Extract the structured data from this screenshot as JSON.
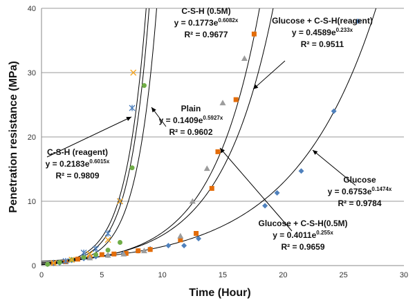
{
  "chart_data": {
    "type": "scatter",
    "xlabel": "Time (Hour)",
    "ylabel": "Penetration resistance (MPa)",
    "xlim": [
      0,
      30
    ],
    "ylim": [
      0,
      40
    ],
    "xticks": [
      "0",
      "5",
      "10",
      "15",
      "20",
      "25",
      "30"
    ],
    "yticks": [
      "0",
      "10",
      "20",
      "30",
      "40"
    ],
    "grid": "horizontal",
    "series": [
      {
        "key": "glucose",
        "marker": "diamond",
        "color": "#4f81bd",
        "fit": {
          "a": 0.6753,
          "b": 0.1474
        },
        "points": [
          [
            0.5,
            0.2
          ],
          [
            1.5,
            0.4
          ],
          [
            2.5,
            0.8
          ],
          [
            3.5,
            1.1
          ],
          [
            4.5,
            1.4
          ],
          [
            5.5,
            1.6
          ],
          [
            6.8,
            1.9
          ],
          [
            8.0,
            2.3
          ],
          [
            9.0,
            2.6
          ],
          [
            10.5,
            3.1
          ],
          [
            11.8,
            3.1
          ],
          [
            13.0,
            4.2
          ],
          [
            18.5,
            9.3
          ],
          [
            19.5,
            11.3
          ],
          [
            21.5,
            14.7
          ],
          [
            24.2,
            24.0
          ],
          [
            26.2,
            38.0
          ]
        ],
        "label": {
          "name": "Glucose",
          "equation_base": "y = 0.6753e",
          "equation_exp": "0.1474x",
          "r2": "R² = 0.9784"
        }
      },
      {
        "key": "glucose-csh-05m",
        "marker": "square",
        "color": "#e36c09",
        "fit": {
          "a": 0.4011,
          "b": 0.255
        },
        "points": [
          [
            1.0,
            0.4
          ],
          [
            2.0,
            0.6
          ],
          [
            3.0,
            1.0
          ],
          [
            4.0,
            1.3
          ],
          [
            5.0,
            1.7
          ],
          [
            6.0,
            1.8
          ],
          [
            7.0,
            1.9
          ],
          [
            8.0,
            2.3
          ],
          [
            9.0,
            2.5
          ],
          [
            11.5,
            4.0
          ],
          [
            12.8,
            5.0
          ],
          [
            14.1,
            12.0
          ],
          [
            14.6,
            17.7
          ],
          [
            16.1,
            25.8
          ],
          [
            17.6,
            36.0
          ]
        ],
        "label": {
          "name": "Glucose + C-S-H(0.5M)",
          "equation_base": "y = 0.4011e",
          "equation_exp": "0.255x",
          "r2": "R² = 0.9659"
        }
      },
      {
        "key": "glucose-csh-reagent",
        "marker": "triangle",
        "color": "#9c9c9c",
        "fit": {
          "a": 0.4589,
          "b": 0.233
        },
        "points": [
          [
            2.5,
            0.9
          ],
          [
            4.0,
            1.2
          ],
          [
            5.5,
            1.6
          ],
          [
            6.8,
            1.8
          ],
          [
            8.5,
            2.3
          ],
          [
            11.5,
            4.6
          ],
          [
            12.5,
            10.0
          ],
          [
            13.7,
            15.1
          ],
          [
            15.0,
            25.3
          ],
          [
            16.8,
            32.2
          ]
        ],
        "label": {
          "name": "Glucose + C-S-H(reagent)",
          "equation_base": "y = 0.4589e",
          "equation_exp": "0.233x",
          "r2": "R² = 0.9511"
        }
      },
      {
        "key": "plain",
        "marker": "circle",
        "color": "#70ad47",
        "fit": {
          "a": 0.1409,
          "b": 0.5927
        },
        "points": [
          [
            0.5,
            0.2
          ],
          [
            1.5,
            0.5
          ],
          [
            2.5,
            0.9
          ],
          [
            3.5,
            1.3
          ],
          [
            4.5,
            1.7
          ],
          [
            5.5,
            2.4
          ],
          [
            6.5,
            3.6
          ],
          [
            7.5,
            15.2
          ],
          [
            8.5,
            28.0
          ]
        ],
        "label": {
          "name": "Plain",
          "equation_base": "y = 0.1409e",
          "equation_exp": "0.5927x",
          "r2": "R² = 0.9602"
        }
      },
      {
        "key": "csh-reagent",
        "marker": "star",
        "color": "#4f81bd",
        "fit": {
          "a": 0.2183,
          "b": 0.6015
        },
        "points": [
          [
            1.0,
            0.4
          ],
          [
            2.0,
            0.7
          ],
          [
            3.5,
            2.0
          ],
          [
            4.5,
            2.6
          ],
          [
            5.5,
            5.0
          ],
          [
            6.5,
            10.0
          ],
          [
            7.5,
            24.5
          ]
        ],
        "label": {
          "name": "C-S-H (reagent)",
          "equation_base": "y = 0.2183e",
          "equation_exp": "0.6015x",
          "r2": "R² = 0.9809"
        }
      },
      {
        "key": "csh-05m",
        "marker": "x",
        "color": "#f5a623",
        "fit": {
          "a": 0.1773,
          "b": 0.6082
        },
        "points": [
          [
            1.0,
            0.4
          ],
          [
            2.5,
            0.9
          ],
          [
            4.0,
            1.8
          ],
          [
            5.5,
            4.0
          ],
          [
            6.5,
            10.0
          ],
          [
            7.6,
            30.0
          ]
        ],
        "label": {
          "name": "C-S-H (0.5M)",
          "equation_base": "y = 0.1773e",
          "equation_exp": "0.6082x",
          "r2": "R² = 0.9677"
        }
      }
    ]
  }
}
